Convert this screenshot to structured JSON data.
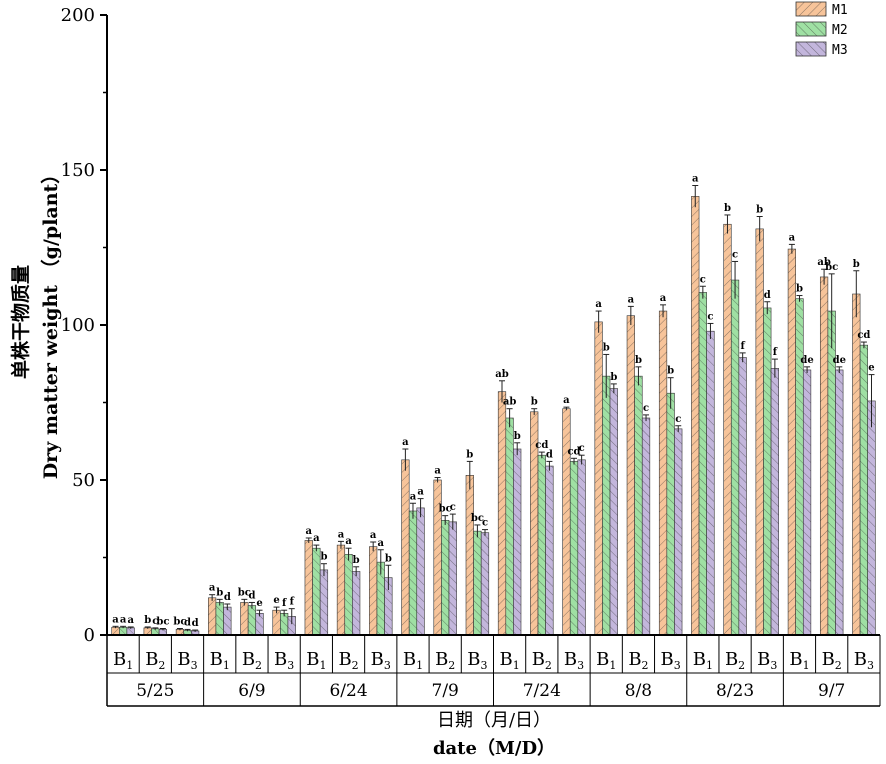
{
  "chart_data": {
    "type": "bar",
    "ylabel_cn": "单株干物质量",
    "ylabel_en": "Dry matter weight （g/plant）",
    "xlabel_cn": "日期（月/日）",
    "xlabel_en": "date（M/D）",
    "ylim": [
      0,
      200
    ],
    "yticks": [
      0,
      50,
      100,
      150,
      200
    ],
    "dates": [
      "5/25",
      "6/9",
      "6/24",
      "7/9",
      "7/24",
      "8/8",
      "8/23",
      "9/7"
    ],
    "b_levels": [
      {
        "main": "B",
        "sub": "1"
      },
      {
        "main": "B",
        "sub": "2"
      },
      {
        "main": "B",
        "sub": "3"
      }
    ],
    "series": [
      {
        "name": "M1",
        "color": "#f7c49a",
        "pattern": "diag-right"
      },
      {
        "name": "M2",
        "color": "#9fe0a3",
        "pattern": "diag-left"
      },
      {
        "name": "M3",
        "color": "#c3b6dc",
        "pattern": "diag-left"
      }
    ],
    "groups": [
      {
        "date": "5/25",
        "bars": [
          {
            "b": "B1",
            "values": [
              2.5,
              2.5,
              2.3
            ],
            "errors": [
              0.3,
              0.3,
              0.3
            ],
            "letters": [
              "a",
              "a",
              "a"
            ]
          },
          {
            "b": "B2",
            "values": [
              2.3,
              2.0,
              1.8
            ],
            "errors": [
              0.3,
              0.3,
              0.3
            ],
            "letters": [
              "b",
              "c",
              "bc"
            ]
          },
          {
            "b": "B3",
            "values": [
              1.8,
              1.5,
              1.3
            ],
            "errors": [
              0.3,
              0.3,
              0.3
            ],
            "letters": [
              "bc",
              "d",
              "d"
            ]
          }
        ]
      },
      {
        "date": "6/9",
        "bars": [
          {
            "b": "B1",
            "values": [
              12.0,
              10.5,
              9.0
            ],
            "errors": [
              1.0,
              1.0,
              1.0
            ],
            "letters": [
              "a",
              "b",
              "d"
            ]
          },
          {
            "b": "B2",
            "values": [
              10.5,
              9.5,
              7.0
            ],
            "errors": [
              1.0,
              1.0,
              1.0
            ],
            "letters": [
              "bc",
              "d",
              "e"
            ]
          },
          {
            "b": "B3",
            "values": [
              8.0,
              7.0,
              6.0
            ],
            "errors": [
              1.0,
              1.0,
              2.5
            ],
            "letters": [
              "e",
              "f",
              "f"
            ]
          }
        ]
      },
      {
        "date": "6/24",
        "bars": [
          {
            "b": "B1",
            "values": [
              30.5,
              28.0,
              21.0
            ],
            "errors": [
              0.8,
              1.0,
              2.0
            ],
            "letters": [
              "a",
              "a",
              "b"
            ]
          },
          {
            "b": "B2",
            "values": [
              29.0,
              26.0,
              20.5
            ],
            "errors": [
              1.2,
              2.0,
              1.5
            ],
            "letters": [
              "a",
              "a",
              "b"
            ]
          },
          {
            "b": "B3",
            "values": [
              28.5,
              23.5,
              18.5
            ],
            "errors": [
              1.5,
              4.0,
              4.0
            ],
            "letters": [
              "a",
              "a",
              "b"
            ]
          }
        ]
      },
      {
        "date": "7/9",
        "bars": [
          {
            "b": "B1",
            "values": [
              56.5,
              40.0,
              41.0
            ],
            "errors": [
              3.5,
              2.5,
              3.0
            ],
            "letters": [
              "a",
              "a",
              "a"
            ]
          },
          {
            "b": "B2",
            "values": [
              50.0,
              37.0,
              36.5
            ],
            "errors": [
              0.8,
              1.5,
              2.5
            ],
            "letters": [
              "a",
              "bc",
              "c"
            ]
          },
          {
            "b": "B3",
            "values": [
              51.5,
              33.5,
              33.0
            ],
            "errors": [
              4.5,
              2.0,
              1.0
            ],
            "letters": [
              "b",
              "bc",
              "c"
            ]
          }
        ]
      },
      {
        "date": "7/24",
        "bars": [
          {
            "b": "B1",
            "values": [
              78.5,
              70.0,
              60.0
            ],
            "errors": [
              3.5,
              3.0,
              2.0
            ],
            "letters": [
              "ab",
              "ab",
              "b"
            ]
          },
          {
            "b": "B2",
            "values": [
              72.0,
              58.0,
              54.5
            ],
            "errors": [
              1.0,
              1.0,
              1.5
            ],
            "letters": [
              "b",
              "cd",
              "d"
            ]
          },
          {
            "b": "B3",
            "values": [
              73.0,
              56.0,
              56.5
            ],
            "errors": [
              0.5,
              1.0,
              1.5
            ],
            "letters": [
              "a",
              "cd",
              "c"
            ]
          }
        ]
      },
      {
        "date": "8/8",
        "bars": [
          {
            "b": "B1",
            "values": [
              101.0,
              83.5,
              79.5
            ],
            "errors": [
              3.5,
              7.0,
              1.5
            ],
            "letters": [
              "a",
              "b",
              "b"
            ]
          },
          {
            "b": "B2",
            "values": [
              103.0,
              83.5,
              70.0
            ],
            "errors": [
              3.0,
              3.0,
              1.0
            ],
            "letters": [
              "a",
              "b",
              "c"
            ]
          },
          {
            "b": "B3",
            "values": [
              104.5,
              78.0,
              66.5
            ],
            "errors": [
              2.0,
              5.0,
              1.0
            ],
            "letters": [
              "a",
              "b",
              "c"
            ]
          }
        ]
      },
      {
        "date": "8/23",
        "bars": [
          {
            "b": "B1",
            "values": [
              141.5,
              110.5,
              98.0
            ],
            "errors": [
              3.5,
              2.0,
              2.5
            ],
            "letters": [
              "a",
              "c",
              "c"
            ]
          },
          {
            "b": "B2",
            "values": [
              132.5,
              114.5,
              89.5
            ],
            "errors": [
              3.0,
              6.0,
              1.5
            ],
            "letters": [
              "b",
              "c",
              "f"
            ]
          },
          {
            "b": "B3",
            "values": [
              131.0,
              105.5,
              86.0
            ],
            "errors": [
              4.0,
              2.0,
              3.0
            ],
            "letters": [
              "b",
              "d",
              "f"
            ]
          }
        ]
      },
      {
        "date": "9/7",
        "bars": [
          {
            "b": "B1",
            "values": [
              124.5,
              108.5,
              85.5
            ],
            "errors": [
              1.5,
              1.0,
              1.0
            ],
            "letters": [
              "a",
              "b",
              "de"
            ]
          },
          {
            "b": "B2",
            "values": [
              115.5,
              104.5,
              85.5
            ],
            "errors": [
              2.5,
              12.0,
              1.0
            ],
            "letters": [
              "ab",
              "bc",
              "de"
            ]
          },
          {
            "b": "B3",
            "values": [
              110.0,
              93.5,
              75.5
            ],
            "errors": [
              7.5,
              1.0,
              8.5
            ],
            "letters": [
              "b",
              "cd",
              "e"
            ]
          }
        ]
      }
    ]
  }
}
